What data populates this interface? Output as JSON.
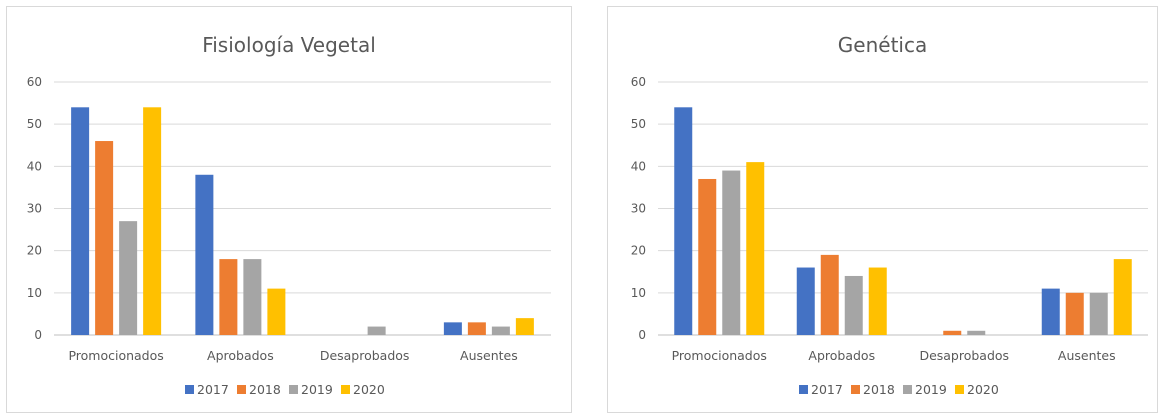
{
  "chart_data": [
    {
      "type": "bar",
      "title": "Fisiología Vegetal",
      "categories": [
        "Promocionados",
        "Aprobados",
        "Desaprobados",
        "Ausentes"
      ],
      "series": [
        {
          "name": "2017",
          "color": "#4472c4",
          "values": [
            54,
            38,
            0,
            3
          ]
        },
        {
          "name": "2018",
          "color": "#ed7d31",
          "values": [
            46,
            18,
            0,
            3
          ]
        },
        {
          "name": "2019",
          "color": "#a5a5a5",
          "values": [
            27,
            18,
            2,
            2
          ]
        },
        {
          "name": "2020",
          "color": "#ffc000",
          "values": [
            54,
            11,
            0,
            4
          ]
        }
      ],
      "yticks": [
        "0",
        "10",
        "20",
        "30",
        "40",
        "50",
        "60"
      ],
      "ylim": [
        0,
        60
      ],
      "grid": true,
      "legend": "bottom"
    },
    {
      "type": "bar",
      "title": "Genética",
      "categories": [
        "Promocionados",
        "Aprobados",
        "Desaprobados",
        "Ausentes"
      ],
      "series": [
        {
          "name": "2017",
          "color": "#4472c4",
          "values": [
            54,
            16,
            0,
            11
          ]
        },
        {
          "name": "2018",
          "color": "#ed7d31",
          "values": [
            37,
            19,
            1,
            10
          ]
        },
        {
          "name": "2019",
          "color": "#a5a5a5",
          "values": [
            39,
            14,
            1,
            10
          ]
        },
        {
          "name": "2020",
          "color": "#ffc000",
          "values": [
            41,
            16,
            0,
            18
          ]
        }
      ],
      "yticks": [
        "0",
        "10",
        "20",
        "30",
        "40",
        "50",
        "60"
      ],
      "ylim": [
        0,
        60
      ],
      "grid": true,
      "legend": "bottom"
    }
  ]
}
